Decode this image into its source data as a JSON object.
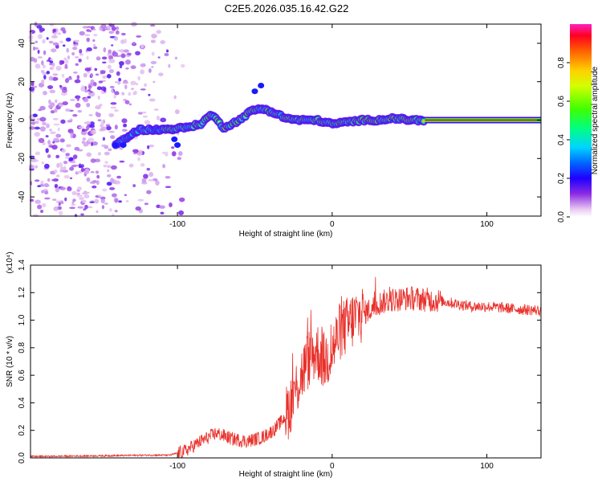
{
  "title": "C2E5.2026.035.16.42.G22",
  "chart_data": [
    {
      "type": "heatmap",
      "name": "spectrogram",
      "xlabel": "Height of straight line (km)",
      "ylabel": "Frequency (Hz)",
      "xlim": [
        -195,
        135
      ],
      "ylim": [
        -50,
        50
      ],
      "xticks": [
        -100,
        0,
        100
      ],
      "yticks": [
        -40,
        -20,
        0,
        20,
        40
      ],
      "colorbar": {
        "label": "Normalized spectral amplitude",
        "range": [
          0,
          1
        ],
        "ticks": [
          0.0,
          0.2,
          0.4,
          0.6,
          0.8
        ]
      },
      "ridge": {
        "x": [
          -140,
          -125,
          -110,
          -95,
          -85,
          -78,
          -70,
          -60,
          -52,
          -45,
          -38,
          -30,
          -22,
          -10,
          0,
          10,
          20,
          30,
          40,
          50,
          60,
          80,
          100,
          120,
          135
        ],
        "y": [
          -13,
          -5,
          -5,
          -4,
          -2,
          3,
          -4,
          0,
          5,
          6,
          4,
          1,
          0,
          0,
          -2,
          -1,
          0,
          0,
          1,
          0,
          0,
          0,
          0,
          0,
          0
        ]
      }
    },
    {
      "type": "line",
      "name": "snr",
      "xlabel": "Height of straight line (km)",
      "ylabel": "SNR (10 * v/v)",
      "yscale_label": "(x10⁴)",
      "xlim": [
        -195,
        135
      ],
      "ylim": [
        0,
        1.4
      ],
      "xticks": [
        -100,
        0,
        100
      ],
      "yticks": [
        0.0,
        0.2,
        0.4,
        0.6,
        0.8,
        1.0,
        1.2,
        1.4
      ],
      "series": [
        {
          "name": "SNR",
          "color": "#e8302a",
          "x": [
            -195,
            -150,
            -120,
            -105,
            -95,
            -85,
            -75,
            -65,
            -55,
            -45,
            -38,
            -30,
            -25,
            -20,
            -15,
            -10,
            -5,
            0,
            5,
            10,
            15,
            20,
            25,
            30,
            35,
            40,
            50,
            60,
            70,
            80,
            90,
            100,
            110,
            120,
            135
          ],
          "y": [
            0.01,
            0.015,
            0.02,
            0.02,
            0.05,
            0.12,
            0.18,
            0.14,
            0.12,
            0.15,
            0.2,
            0.3,
            0.45,
            0.6,
            0.72,
            0.78,
            0.7,
            0.78,
            0.92,
            0.96,
            1.02,
            1.05,
            1.08,
            1.12,
            1.14,
            1.15,
            1.16,
            1.15,
            1.14,
            1.12,
            1.1,
            1.1,
            1.09,
            1.08,
            1.07
          ]
        }
      ]
    }
  ]
}
